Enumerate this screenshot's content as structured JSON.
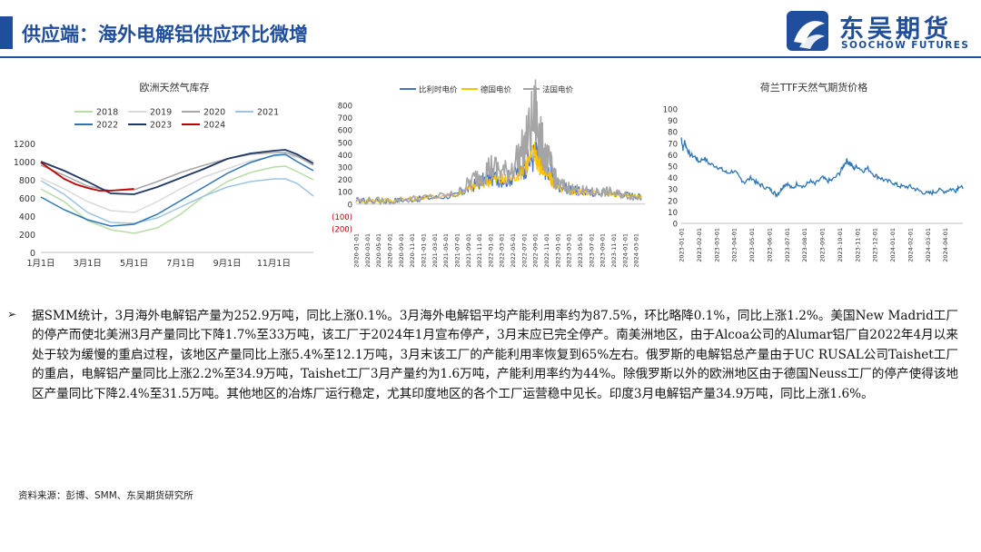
{
  "header": {
    "title": "供应端：海外电解铝供应环比微增",
    "logo_cn": "东吴期货",
    "logo_en": "SOOCHOW FUTURES"
  },
  "colors": {
    "brand": "#1f4e9c"
  },
  "chart_data": [
    {
      "type": "line",
      "title": "欧洲天然气库存",
      "xlabel": "",
      "ylabel": "",
      "ylim": [
        0,
        1200
      ],
      "yticks": [
        "0",
        "200",
        "400",
        "600",
        "800",
        "1000",
        "1200"
      ],
      "x_ticks": [
        "1月1日",
        "3月1日",
        "5月1日",
        "7月1日",
        "9月1日",
        "11月1日"
      ],
      "x_tick_months": [
        1,
        3,
        5,
        7,
        9,
        11
      ],
      "grid": false,
      "legend_position": "top",
      "series": [
        {
          "name": "2018",
          "color": "#b7dca5",
          "width": 1.5,
          "x": [
            1,
            2,
            3,
            4,
            5,
            6,
            7,
            8,
            9,
            10,
            11,
            11.5,
            12,
            12.7
          ],
          "values": [
            700,
            560,
            350,
            250,
            210,
            270,
            420,
            620,
            780,
            880,
            940,
            950,
            890,
            800
          ]
        },
        {
          "name": "2019",
          "color": "#d9d9d9",
          "width": 1.5,
          "x": [
            1,
            2,
            3,
            4,
            5,
            6,
            7,
            8,
            9,
            10,
            11,
            11.5,
            12,
            12.7
          ],
          "values": [
            820,
            700,
            560,
            460,
            440,
            560,
            700,
            830,
            920,
            1010,
            1060,
            1070,
            1050,
            1010
          ]
        },
        {
          "name": "2020",
          "color": "#a6a6a6",
          "width": 1.5,
          "x": [
            1,
            2,
            3,
            4,
            5,
            6,
            7,
            8,
            9,
            10,
            11,
            11.5,
            12,
            12.7
          ],
          "values": [
            960,
            850,
            730,
            680,
            690,
            780,
            880,
            960,
            1030,
            1080,
            1100,
            1100,
            1060,
            960
          ]
        },
        {
          "name": "2021",
          "color": "#9dc3e6",
          "width": 1.5,
          "x": [
            1,
            2,
            3,
            4,
            5,
            6,
            7,
            8,
            9,
            10,
            11,
            11.5,
            12,
            12.7
          ],
          "values": [
            790,
            640,
            440,
            330,
            320,
            380,
            500,
            620,
            720,
            780,
            810,
            810,
            760,
            620
          ]
        },
        {
          "name": "2022",
          "color": "#2e75b6",
          "width": 1.5,
          "x": [
            1,
            2,
            3,
            4,
            5,
            6,
            7,
            8,
            9,
            10,
            11,
            11.5,
            12,
            12.7
          ],
          "values": [
            610,
            470,
            360,
            290,
            310,
            420,
            570,
            720,
            870,
            990,
            1070,
            1080,
            1000,
            900
          ]
        },
        {
          "name": "2023",
          "color": "#1f3864",
          "width": 1.8,
          "x": [
            1,
            2,
            3,
            4,
            5,
            6,
            7,
            8,
            9,
            10,
            11,
            11.5,
            12,
            12.7
          ],
          "values": [
            1000,
            900,
            780,
            650,
            640,
            720,
            820,
            920,
            1030,
            1090,
            1120,
            1130,
            1080,
            980
          ]
        },
        {
          "name": "2024",
          "color": "#c00000",
          "width": 1.8,
          "x": [
            1,
            1.5,
            2,
            2.5,
            3,
            3.5,
            4,
            4.5,
            5
          ],
          "values": [
            990,
            900,
            810,
            750,
            710,
            680,
            680,
            690,
            700
          ]
        }
      ]
    },
    {
      "type": "line",
      "title": "",
      "xlabel": "",
      "ylabel": "",
      "ylim": [
        -200,
        800
      ],
      "yticks": [
        "(200)",
        "(100)",
        "0",
        "100",
        "200",
        "300",
        "400",
        "500",
        "600",
        "700",
        "800"
      ],
      "x_ticks": [
        "2020-01-01",
        "2020-03-01",
        "2020-05-01",
        "2020-07-01",
        "2020-09-01",
        "2020-11-01",
        "2021-01-01",
        "2021-03-01",
        "2021-05-01",
        "2021-07-01",
        "2021-09-01",
        "2021-11-01",
        "2022-01-01",
        "2022-03-01",
        "2022-05-01",
        "2022-07-01",
        "2022-09-01",
        "2022-11-01",
        "2023-01-01",
        "2023-03-01",
        "2023-05-01",
        "2023-07-01",
        "2023-09-01",
        "2023-11-01",
        "2024-01-01",
        "2024-03-01"
      ],
      "grid": false,
      "legend_position": "top",
      "series": [
        {
          "name": "比利时电价",
          "color": "#4472c4",
          "x": [
            2020.0,
            2020.5,
            2021.0,
            2021.5,
            2021.75,
            2022.0,
            2022.25,
            2022.5,
            2022.67,
            2022.75,
            2022.9,
            2023.0,
            2023.25,
            2023.5,
            2023.75,
            2024.0,
            2024.25
          ],
          "values": [
            30,
            25,
            45,
            70,
            150,
            220,
            200,
            300,
            400,
            350,
            250,
            150,
            110,
            90,
            95,
            80,
            60
          ]
        },
        {
          "name": "德国电价",
          "color": "#ffc000",
          "x": [
            2020.0,
            2020.5,
            2021.0,
            2021.5,
            2021.75,
            2022.0,
            2022.25,
            2022.5,
            2022.67,
            2022.75,
            2022.9,
            2023.0,
            2023.25,
            2023.5,
            2023.75,
            2024.0,
            2024.25
          ],
          "values": [
            30,
            30,
            50,
            80,
            140,
            200,
            190,
            300,
            420,
            300,
            200,
            130,
            100,
            95,
            90,
            75,
            60
          ]
        },
        {
          "name": "法国电价",
          "color": "#a5a5a5",
          "x": [
            2020.0,
            2020.5,
            2021.0,
            2021.5,
            2021.75,
            2022.0,
            2022.25,
            2022.5,
            2022.67,
            2022.75,
            2022.9,
            2023.0,
            2023.25,
            2023.5,
            2023.75,
            2024.0,
            2024.25
          ],
          "values": [
            30,
            25,
            50,
            80,
            200,
            300,
            250,
            450,
            740,
            500,
            300,
            160,
            120,
            95,
            100,
            70,
            50
          ]
        }
      ]
    },
    {
      "type": "line",
      "title": "荷兰TTF天然气期货价格",
      "xlabel": "",
      "ylabel": "",
      "ylim": [
        0,
        100
      ],
      "yticks": [
        "0",
        "10",
        "20",
        "30",
        "40",
        "50",
        "60",
        "70",
        "80",
        "90",
        "100"
      ],
      "x_ticks": [
        "2023-01-01",
        "2023-02-01",
        "2023-03-01",
        "2023-04-01",
        "2023-05-01",
        "2023-06-01",
        "2023-07-01",
        "2023-08-01",
        "2023-09-01",
        "2023-10-01",
        "2023-11-01",
        "2023-12-01",
        "2024-01-01",
        "2024-02-01",
        "2024-03-01",
        "2024-04-01"
      ],
      "grid": false,
      "legend_position": "none",
      "series": [
        {
          "name": "",
          "color": "#2e75b6",
          "x": [
            0,
            0.1,
            0.2,
            0.3,
            0.5,
            0.8,
            1.0,
            1.3,
            1.6,
            2.0,
            2.3,
            2.6,
            3.0,
            3.3,
            3.6,
            4.0,
            4.3,
            4.6,
            5.0,
            5.2,
            5.4,
            5.6,
            5.8,
            6.0,
            6.3,
            6.6,
            7.0,
            7.3,
            7.6,
            8.0,
            8.3,
            8.6,
            9.0,
            9.2,
            9.4,
            9.6,
            9.8,
            10.0,
            10.3,
            10.6,
            11.0,
            11.3,
            11.6,
            12.0,
            12.3,
            12.6,
            13.0,
            13.3,
            13.6,
            14.0,
            14.3,
            14.6,
            15.0,
            15.3,
            15.6,
            15.8,
            16.0
          ],
          "values": [
            75,
            65,
            72,
            66,
            60,
            58,
            54,
            57,
            52,
            50,
            47,
            44,
            46,
            40,
            36,
            40,
            35,
            33,
            30,
            28,
            25,
            28,
            33,
            35,
            30,
            35,
            32,
            37,
            34,
            40,
            37,
            38,
            44,
            50,
            55,
            52,
            48,
            50,
            46,
            48,
            42,
            40,
            37,
            36,
            33,
            32,
            32,
            30,
            28,
            26,
            27,
            29,
            28,
            30,
            29,
            33,
            30
          ]
        }
      ]
    }
  ],
  "body": {
    "bullet": "➢",
    "text": "据SMM统计，3月海外电解铝产量为252.9万吨，同比上涨0.1%。3月海外电解铝平均产能利用率约为87.5%，环比略降0.1%，同比上涨1.2%。美国New Madrid工厂的停产而使北美洲3月产量同比下降1.7%至33万吨，该工厂于2024年1月宣布停产，3月末应已完全停产。南美洲地区，由于Alcoa公司的Alumar铝厂自2022年4月以来处于较为缓慢的重启过程，该地区产量同比上涨5.4%至12.1万吨，3月末该工厂的产能利用率恢复到65%左右。俄罗斯的电解铝总产量由于UC RUSAL公司Taishet工厂的重启，电解铝产量同比上涨2.2%至34.9万吨，Taishet工厂3月产量约为1.6万吨，产能利用率约为44%。除俄罗斯以外的欧洲地区由于德国Neuss工厂的停产使得该地区产量同比下降2.4%至31.5万吨。其他地区的冶炼厂运行稳定，尤其印度地区的各个工厂运营稳中见长。印度3月电解铝产量34.9万吨，同比上涨1.6%。"
  },
  "footer": {
    "source": "资料来源：彭博、SMM、东吴期货研究所"
  }
}
